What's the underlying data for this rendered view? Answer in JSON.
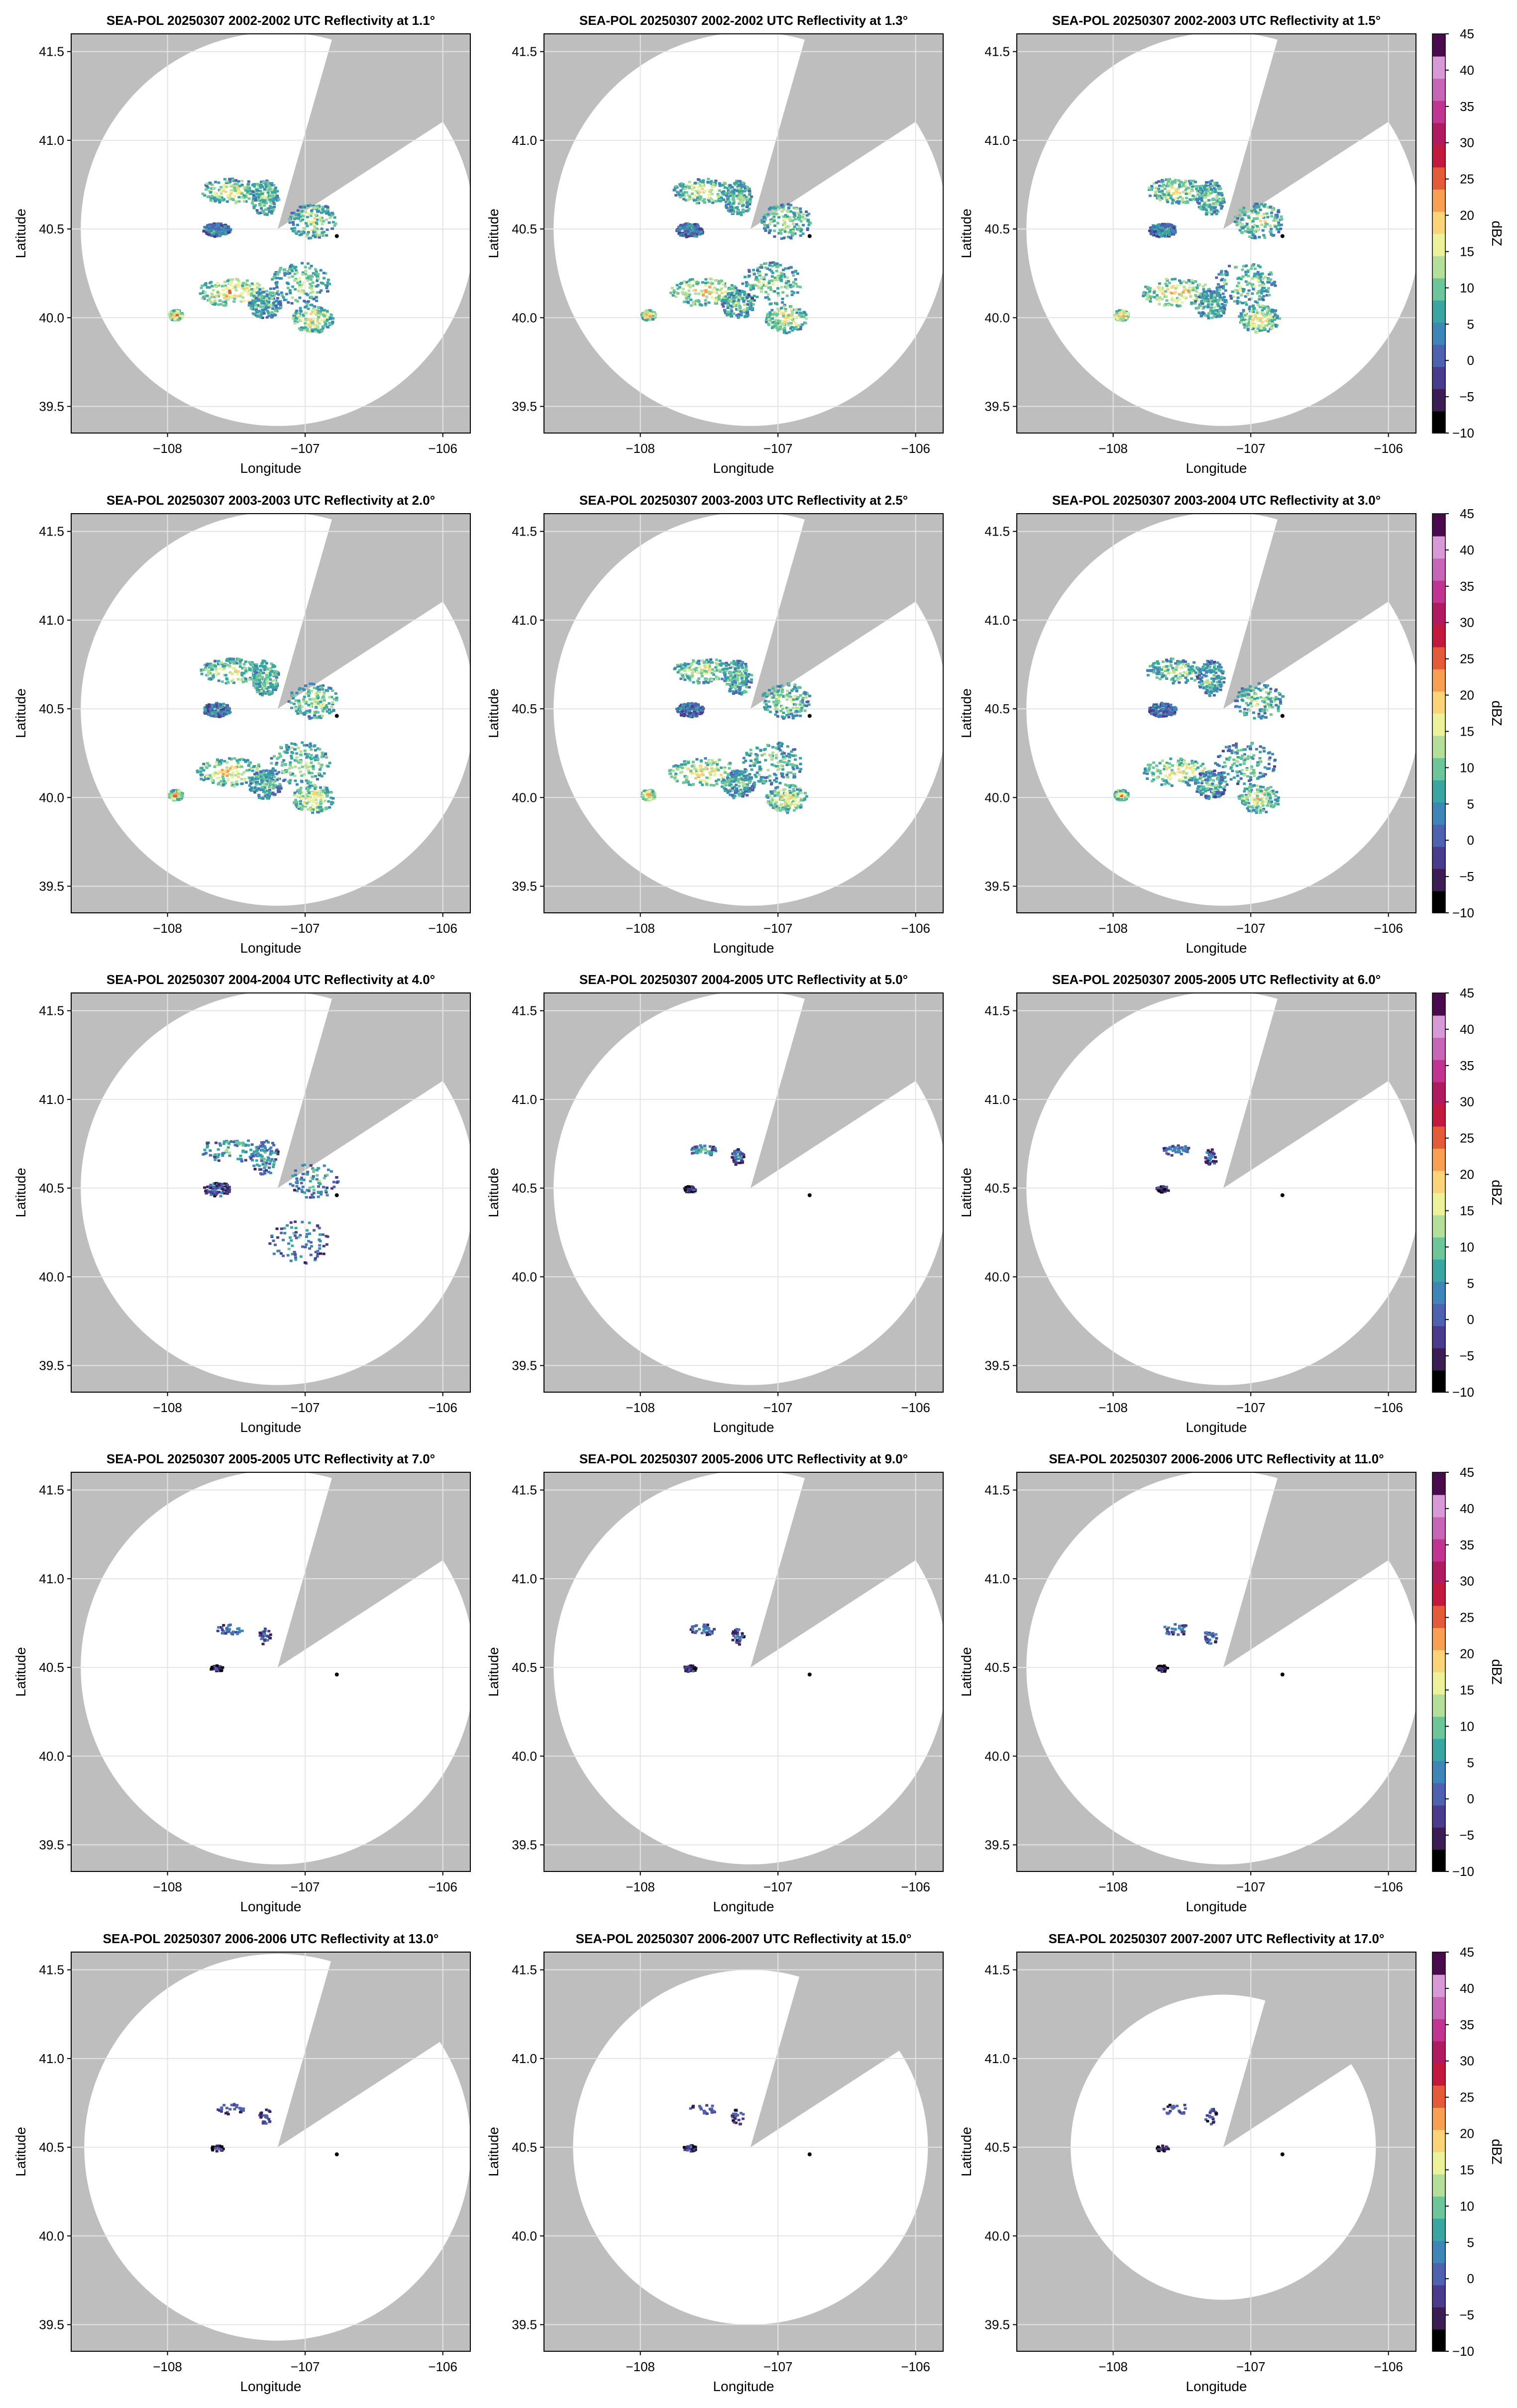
{
  "figure": {
    "xlabel": "Longitude",
    "ylabel": "Latitude",
    "colorbar_label": "dBZ"
  },
  "chart_data": [
    {
      "type": "heatmap",
      "title": "SEA-POL 20250307 2002-2002 UTC Reflectivity at 1.1°",
      "xlabel": "Longitude",
      "ylabel": "Latitude",
      "xlim": [
        -108.7,
        -105.8
      ],
      "ylim": [
        39.35,
        41.6
      ],
      "xticks": [
        -108,
        -107,
        -106
      ],
      "yticks": [
        39.5,
        40.0,
        40.5,
        41.0,
        41.5
      ],
      "grid": true,
      "radar_center": [
        -107.2,
        40.5
      ],
      "range_deg_lat": 1.11,
      "sector_blocked_deg": [
        16,
        57
      ],
      "marker": [
        -106.77,
        40.46
      ],
      "elev_index": 0,
      "rain_extent": 1.0,
      "max_dbz": 35
    },
    {
      "type": "heatmap",
      "title": "SEA-POL 20250307 2002-2002 UTC Reflectivity at 1.3°",
      "xlabel": "Longitude",
      "ylabel": "Latitude",
      "xlim": [
        -108.7,
        -105.8
      ],
      "ylim": [
        39.35,
        41.6
      ],
      "xticks": [
        -108,
        -107,
        -106
      ],
      "yticks": [
        39.5,
        40.0,
        40.5,
        41.0,
        41.5
      ],
      "grid": true,
      "radar_center": [
        -107.2,
        40.5
      ],
      "range_deg_lat": 1.11,
      "sector_blocked_deg": [
        16,
        57
      ],
      "marker": [
        -106.77,
        40.46
      ],
      "elev_index": 1,
      "rain_extent": 1.0,
      "max_dbz": 35
    },
    {
      "type": "heatmap",
      "title": "SEA-POL 20250307 2002-2003 UTC Reflectivity at 1.5°",
      "xlabel": "Longitude",
      "ylabel": "Latitude",
      "xlim": [
        -108.7,
        -105.8
      ],
      "ylim": [
        39.35,
        41.6
      ],
      "xticks": [
        -108,
        -107,
        -106
      ],
      "yticks": [
        39.5,
        40.0,
        40.5,
        41.0,
        41.5
      ],
      "grid": true,
      "radar_center": [
        -107.2,
        40.5
      ],
      "range_deg_lat": 1.11,
      "sector_blocked_deg": [
        16,
        57
      ],
      "marker": [
        -106.77,
        40.46
      ],
      "elev_index": 2,
      "rain_extent": 1.0,
      "max_dbz": 35,
      "colorbar": {
        "min": -10,
        "max": 45,
        "ticks": [
          -10,
          -5,
          0,
          5,
          10,
          15,
          20,
          25,
          30,
          35,
          40,
          45
        ]
      }
    },
    {
      "type": "heatmap",
      "title": "SEA-POL 20250307 2003-2003 UTC Reflectivity at 2.0°",
      "xlabel": "Longitude",
      "ylabel": "Latitude",
      "xlim": [
        -108.7,
        -105.8
      ],
      "ylim": [
        39.35,
        41.6
      ],
      "xticks": [
        -108,
        -107,
        -106
      ],
      "yticks": [
        39.5,
        40.0,
        40.5,
        41.0,
        41.5
      ],
      "grid": true,
      "radar_center": [
        -107.2,
        40.5
      ],
      "range_deg_lat": 1.11,
      "sector_blocked_deg": [
        16,
        57
      ],
      "marker": [
        -106.77,
        40.46
      ],
      "elev_index": 3,
      "rain_extent": 1.0,
      "max_dbz": 35
    },
    {
      "type": "heatmap",
      "title": "SEA-POL 20250307 2003-2003 UTC Reflectivity at 2.5°",
      "xlabel": "Longitude",
      "ylabel": "Latitude",
      "xlim": [
        -108.7,
        -105.8
      ],
      "ylim": [
        39.35,
        41.6
      ],
      "xticks": [
        -108,
        -107,
        -106
      ],
      "yticks": [
        39.5,
        40.0,
        40.5,
        41.0,
        41.5
      ],
      "grid": true,
      "radar_center": [
        -107.2,
        40.5
      ],
      "range_deg_lat": 1.11,
      "sector_blocked_deg": [
        16,
        57
      ],
      "marker": [
        -106.77,
        40.46
      ],
      "elev_index": 4,
      "rain_extent": 0.95,
      "max_dbz": 30
    },
    {
      "type": "heatmap",
      "title": "SEA-POL 20250307 2003-2004 UTC Reflectivity at 3.0°",
      "xlabel": "Longitude",
      "ylabel": "Latitude",
      "xlim": [
        -108.7,
        -105.8
      ],
      "ylim": [
        39.35,
        41.6
      ],
      "xticks": [
        -108,
        -107,
        -106
      ],
      "yticks": [
        39.5,
        40.0,
        40.5,
        41.0,
        41.5
      ],
      "grid": true,
      "radar_center": [
        -107.2,
        40.5
      ],
      "range_deg_lat": 1.11,
      "sector_blocked_deg": [
        16,
        57
      ],
      "marker": [
        -106.77,
        40.46
      ],
      "elev_index": 5,
      "rain_extent": 0.85,
      "max_dbz": 28,
      "colorbar": {
        "min": -10,
        "max": 45,
        "ticks": [
          -10,
          -5,
          0,
          5,
          10,
          15,
          20,
          25,
          30,
          35,
          40,
          45
        ]
      }
    },
    {
      "type": "heatmap",
      "title": "SEA-POL 20250307 2004-2004 UTC Reflectivity at 4.0°",
      "xlabel": "Longitude",
      "ylabel": "Latitude",
      "xlim": [
        -108.7,
        -105.8
      ],
      "ylim": [
        39.35,
        41.6
      ],
      "xticks": [
        -108,
        -107,
        -106
      ],
      "yticks": [
        39.5,
        40.0,
        40.5,
        41.0,
        41.5
      ],
      "grid": true,
      "radar_center": [
        -107.2,
        40.5
      ],
      "range_deg_lat": 1.11,
      "sector_blocked_deg": [
        16,
        57
      ],
      "marker": [
        -106.77,
        40.46
      ],
      "elev_index": 6,
      "rain_extent": 0.5,
      "max_dbz": 15
    },
    {
      "type": "heatmap",
      "title": "SEA-POL 20250307 2004-2005 UTC Reflectivity at 5.0°",
      "xlabel": "Longitude",
      "ylabel": "Latitude",
      "xlim": [
        -108.7,
        -105.8
      ],
      "ylim": [
        39.35,
        41.6
      ],
      "xticks": [
        -108,
        -107,
        -106
      ],
      "yticks": [
        39.5,
        40.0,
        40.5,
        41.0,
        41.5
      ],
      "grid": true,
      "radar_center": [
        -107.2,
        40.5
      ],
      "range_deg_lat": 1.11,
      "sector_blocked_deg": [
        16,
        57
      ],
      "marker": [
        -106.77,
        40.46
      ],
      "elev_index": 7,
      "rain_extent": 0.3,
      "max_dbz": 10
    },
    {
      "type": "heatmap",
      "title": "SEA-POL 20250307 2005-2005 UTC Reflectivity at 6.0°",
      "xlabel": "Longitude",
      "ylabel": "Latitude",
      "xlim": [
        -108.7,
        -105.8
      ],
      "ylim": [
        39.35,
        41.6
      ],
      "xticks": [
        -108,
        -107,
        -106
      ],
      "yticks": [
        39.5,
        40.0,
        40.5,
        41.0,
        41.5
      ],
      "grid": true,
      "radar_center": [
        -107.2,
        40.5
      ],
      "range_deg_lat": 1.11,
      "sector_blocked_deg": [
        16,
        57
      ],
      "marker": [
        -106.77,
        40.46
      ],
      "elev_index": 8,
      "rain_extent": 0.25,
      "max_dbz": 5,
      "colorbar": {
        "min": -10,
        "max": 45,
        "ticks": [
          -10,
          -5,
          0,
          5,
          10,
          15,
          20,
          25,
          30,
          35,
          40,
          45
        ]
      }
    },
    {
      "type": "heatmap",
      "title": "SEA-POL 20250307 2005-2005 UTC Reflectivity at 7.0°",
      "xlabel": "Longitude",
      "ylabel": "Latitude",
      "xlim": [
        -108.7,
        -105.8
      ],
      "ylim": [
        39.35,
        41.6
      ],
      "xticks": [
        -108,
        -107,
        -106
      ],
      "yticks": [
        39.5,
        40.0,
        40.5,
        41.0,
        41.5
      ],
      "grid": true,
      "radar_center": [
        -107.2,
        40.5
      ],
      "range_deg_lat": 1.11,
      "sector_blocked_deg": [
        16,
        57
      ],
      "marker": [
        -106.77,
        40.46
      ],
      "elev_index": 9,
      "rain_extent": 0.2,
      "max_dbz": 3
    },
    {
      "type": "heatmap",
      "title": "SEA-POL 20250307 2005-2006 UTC Reflectivity at 9.0°",
      "xlabel": "Longitude",
      "ylabel": "Latitude",
      "xlim": [
        -108.7,
        -105.8
      ],
      "ylim": [
        39.35,
        41.6
      ],
      "xticks": [
        -108,
        -107,
        -106
      ],
      "yticks": [
        39.5,
        40.0,
        40.5,
        41.0,
        41.5
      ],
      "grid": true,
      "radar_center": [
        -107.2,
        40.5
      ],
      "range_deg_lat": 1.11,
      "sector_blocked_deg": [
        16,
        57
      ],
      "marker": [
        -106.77,
        40.46
      ],
      "elev_index": 10,
      "rain_extent": 0.2,
      "max_dbz": 3
    },
    {
      "type": "heatmap",
      "title": "SEA-POL 20250307 2006-2006 UTC Reflectivity at 11.0°",
      "xlabel": "Longitude",
      "ylabel": "Latitude",
      "xlim": [
        -108.7,
        -105.8
      ],
      "ylim": [
        39.35,
        41.6
      ],
      "xticks": [
        -108,
        -107,
        -106
      ],
      "yticks": [
        39.5,
        40.0,
        40.5,
        41.0,
        41.5
      ],
      "grid": true,
      "radar_center": [
        -107.2,
        40.5
      ],
      "range_deg_lat": 1.11,
      "sector_blocked_deg": [
        16,
        57
      ],
      "marker": [
        -106.77,
        40.46
      ],
      "elev_index": 11,
      "rain_extent": 0.18,
      "max_dbz": 3,
      "colorbar": {
        "min": -10,
        "max": 45,
        "ticks": [
          -10,
          -5,
          0,
          5,
          10,
          15,
          20,
          25,
          30,
          35,
          40,
          45
        ]
      }
    },
    {
      "type": "heatmap",
      "title": "SEA-POL 20250307 2006-2006 UTC Reflectivity at 13.0°",
      "xlabel": "Longitude",
      "ylabel": "Latitude",
      "xlim": [
        -108.7,
        -105.8
      ],
      "ylim": [
        39.35,
        41.6
      ],
      "xticks": [
        -108,
        -107,
        -106
      ],
      "yticks": [
        39.5,
        40.0,
        40.5,
        41.0,
        41.5
      ],
      "grid": true,
      "radar_center": [
        -107.2,
        40.5
      ],
      "range_deg_lat": 1.09,
      "sector_blocked_deg": [
        16,
        57
      ],
      "marker": [
        -106.77,
        40.46
      ],
      "elev_index": 12,
      "rain_extent": 0.15,
      "max_dbz": 2
    },
    {
      "type": "heatmap",
      "title": "SEA-POL 20250307 2006-2007 UTC Reflectivity at 15.0°",
      "xlabel": "Longitude",
      "ylabel": "Latitude",
      "xlim": [
        -108.7,
        -105.8
      ],
      "ylim": [
        39.35,
        41.6
      ],
      "xticks": [
        -108,
        -107,
        -106
      ],
      "yticks": [
        39.5,
        40.0,
        40.5,
        41.0,
        41.5
      ],
      "grid": true,
      "radar_center": [
        -107.2,
        40.5
      ],
      "range_deg_lat": 1.0,
      "sector_blocked_deg": [
        16,
        57
      ],
      "marker": [
        -106.77,
        40.46
      ],
      "elev_index": 13,
      "rain_extent": 0.15,
      "max_dbz": 2
    },
    {
      "type": "heatmap",
      "title": "SEA-POL 20250307 2007-2007 UTC Reflectivity at 17.0°",
      "xlabel": "Longitude",
      "ylabel": "Latitude",
      "xlim": [
        -108.7,
        -105.8
      ],
      "ylim": [
        39.35,
        41.6
      ],
      "xticks": [
        -108,
        -107,
        -106
      ],
      "yticks": [
        39.5,
        40.0,
        40.5,
        41.0,
        41.5
      ],
      "grid": true,
      "radar_center": [
        -107.2,
        40.5
      ],
      "range_deg_lat": 0.86,
      "sector_blocked_deg": [
        16,
        57
      ],
      "marker": [
        -106.77,
        40.46
      ],
      "elev_index": 14,
      "rain_extent": 0.12,
      "max_dbz": 2,
      "colorbar": {
        "min": -10,
        "max": 45,
        "ticks": [
          -10,
          -5,
          0,
          5,
          10,
          15,
          20,
          25,
          30,
          35,
          40,
          45
        ]
      }
    }
  ],
  "colors": {
    "background_masked": "#bebebe",
    "scan_area": "#ffffff",
    "grid": "#e4e4e4",
    "marker": "#000000",
    "colormap": [
      "#000000",
      "#3b1c55",
      "#4a3b8c",
      "#4e62b0",
      "#3e86b8",
      "#3aa6a2",
      "#6cc69a",
      "#b4df9a",
      "#ecf29a",
      "#fdd37a",
      "#f8a052",
      "#e45b3a",
      "#c21a3c",
      "#b01a62",
      "#c0358f",
      "#c766b8",
      "#d79ad6",
      "#4a0a4e"
    ]
  },
  "icons": {
    "marker": "dot-marker"
  }
}
